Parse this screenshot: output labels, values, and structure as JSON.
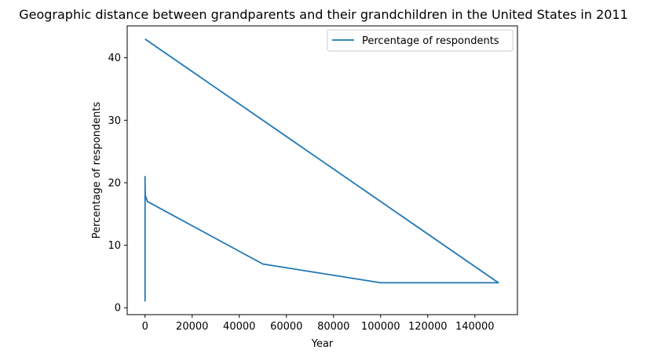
{
  "chart_data": {
    "type": "line",
    "title": "Geographic distance between grandparents and their grandchildren in the United States in 2011",
    "xlabel": "Year",
    "ylabel": "Percentage of respondents",
    "x_ticks": [
      0,
      20000,
      40000,
      60000,
      80000,
      100000,
      120000,
      140000
    ],
    "x_tick_labels": [
      "0",
      "20000",
      "40000",
      "60000",
      "80000",
      "100000",
      "120000",
      "140000"
    ],
    "y_ticks": [
      0,
      10,
      20,
      30,
      40
    ],
    "y_tick_labels": [
      "0",
      "10",
      "20",
      "30",
      "40"
    ],
    "xlim": [
      -7575,
      158075
    ],
    "ylim": [
      -1.1,
      45.1
    ],
    "legend_position": "top-right",
    "grid": false,
    "series": [
      {
        "name": "Percentage of respondents",
        "color": "#1f77b4",
        "x": [
          1,
          1,
          10,
          50,
          100,
          1000,
          50000,
          100000,
          150000,
          1
        ],
        "y": [
          1,
          21,
          20,
          19,
          18,
          17,
          7,
          4,
          4,
          43
        ]
      }
    ]
  }
}
